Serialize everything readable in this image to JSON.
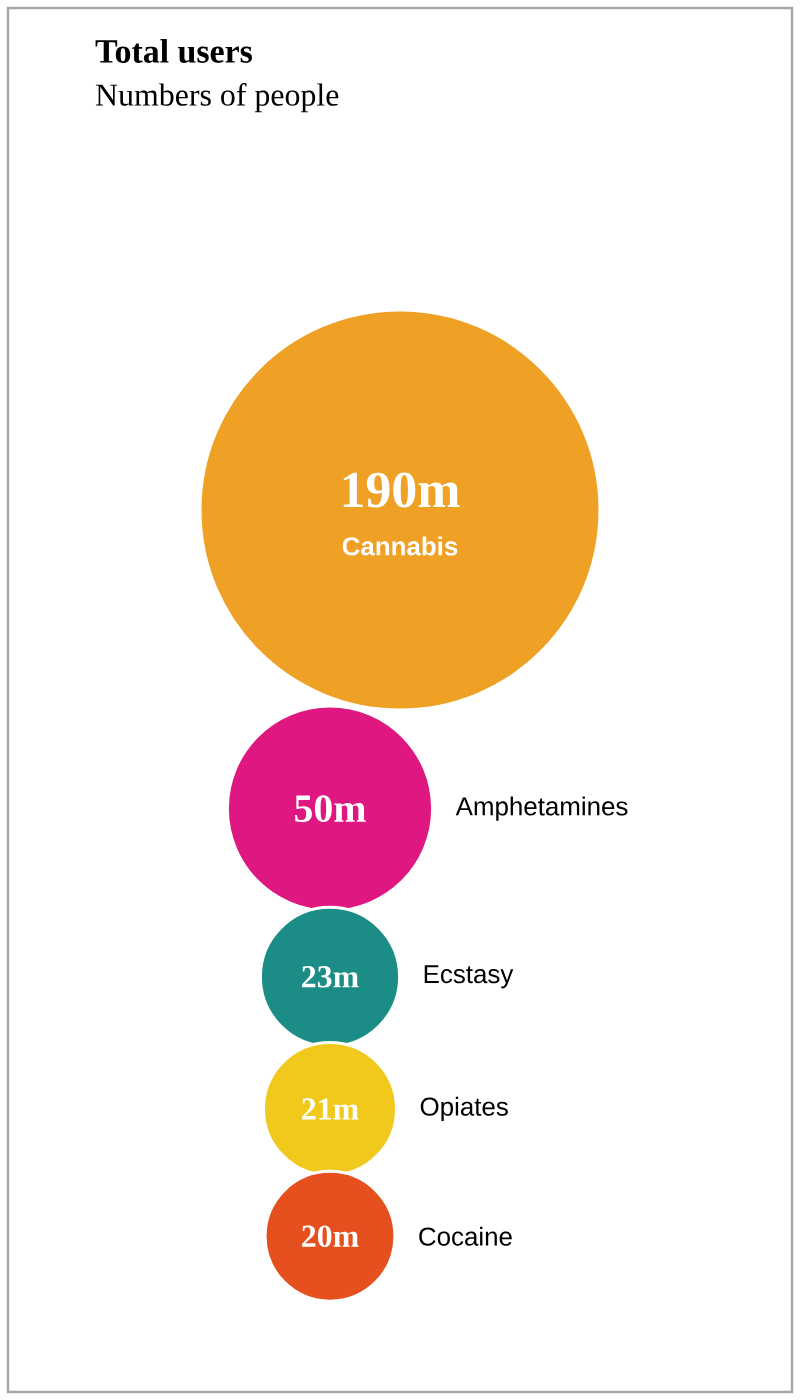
{
  "chart_data": {
    "type": "other",
    "title": "Total users",
    "subtitle": "Numbers of people",
    "categories": [
      "Cannabis",
      "Amphetamines",
      "Ecstasy",
      "Opiates",
      "Cocaine"
    ],
    "values": [
      190,
      50,
      23,
      21,
      20
    ],
    "value_labels": [
      "190m",
      "50m",
      "23m",
      "21m",
      "20m"
    ],
    "colors": [
      "#efa125",
      "#df1780",
      "#1b8d86",
      "#f1c91c",
      "#e6501f"
    ]
  }
}
